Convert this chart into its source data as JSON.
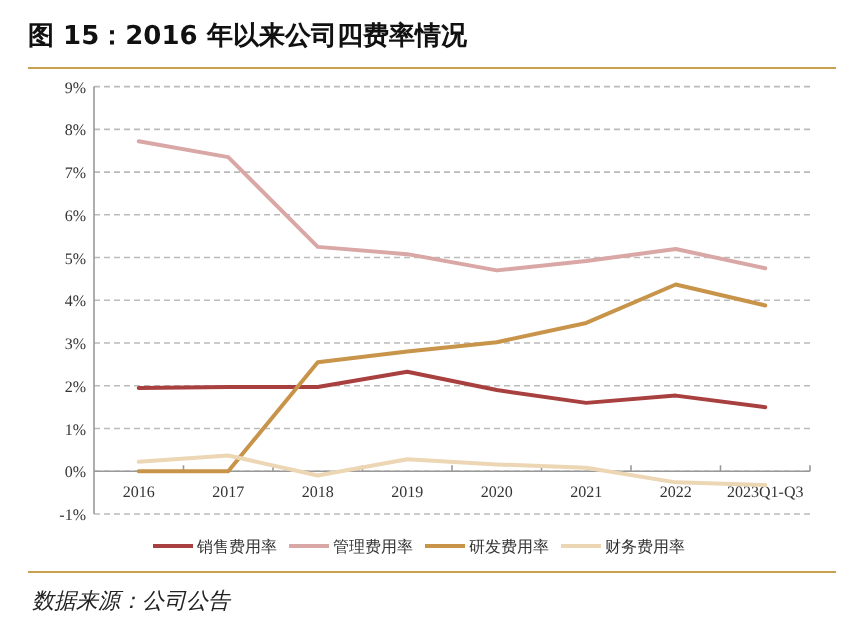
{
  "chart_data": {
    "type": "line",
    "title": "图 15：2016 年以来公司四费率情况",
    "annotations": [
      "数据来源：公司公告"
    ],
    "categories": [
      "2016",
      "2017",
      "2018",
      "2019",
      "2020",
      "2021",
      "2022",
      "2023Q1-Q3"
    ],
    "ylim": [
      -1,
      9
    ],
    "yticks": [
      {
        "value": -1,
        "label": "-1%"
      },
      {
        "value": 0,
        "label": "0%"
      },
      {
        "value": 1,
        "label": "1%"
      },
      {
        "value": 2,
        "label": "2%"
      },
      {
        "value": 3,
        "label": "3%"
      },
      {
        "value": 4,
        "label": "4%"
      },
      {
        "value": 5,
        "label": "5%"
      },
      {
        "value": 6,
        "label": "6%"
      },
      {
        "value": 7,
        "label": "7%"
      },
      {
        "value": 8,
        "label": "8%"
      },
      {
        "value": 9,
        "label": "9%"
      }
    ],
    "grid": "y",
    "legend": "bottom",
    "marker": "none",
    "line_style": "solid",
    "series": [
      {
        "name": "销售费用率",
        "color": "#a8403f",
        "values": [
          1.95,
          1.97,
          1.97,
          2.33,
          1.9,
          1.6,
          1.77,
          1.5
        ]
      },
      {
        "name": "管理费用率",
        "color": "#d9a7a5",
        "values": [
          7.72,
          7.35,
          5.25,
          5.08,
          4.7,
          4.92,
          5.2,
          4.75
        ]
      },
      {
        "name": "研发费用率",
        "color": "#c8944a",
        "values": [
          0,
          0,
          2.55,
          2.8,
          3.02,
          3.47,
          4.37,
          3.88
        ]
      },
      {
        "name": "财务费用率",
        "color": "#ecd6b4",
        "values": [
          0.22,
          0.37,
          -0.1,
          0.28,
          0.16,
          0.08,
          -0.26,
          -0.32
        ]
      }
    ]
  }
}
